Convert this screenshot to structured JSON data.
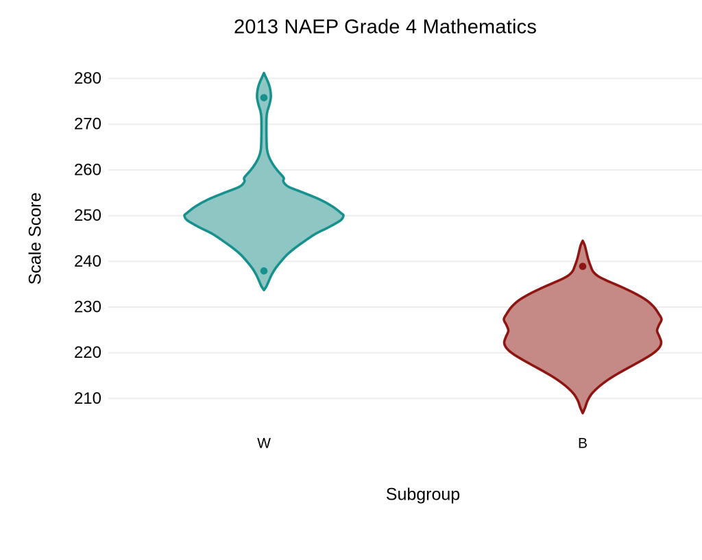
{
  "figure": {
    "background": "#ffffff",
    "text_color": "#000000",
    "gridline_color": "#ececec"
  },
  "chart_data": {
    "type": "violin",
    "title": "2013 NAEP Grade 4 Mathematics",
    "xlabel": "Subgroup",
    "ylabel": "Scale Score",
    "categories": [
      "W",
      "B"
    ],
    "yticks": [
      210,
      220,
      230,
      240,
      250,
      260,
      270,
      280
    ],
    "ylim": [
      205,
      283
    ],
    "grid": true,
    "legend": false,
    "series": [
      {
        "name": "W",
        "stroke": "#17918d",
        "fill": "#8dc6c3",
        "points": [
          275.8,
          237.9
        ],
        "range": [
          233.7,
          281.2
        ],
        "peak_score": 250,
        "profile": [
          [
            281.2,
            0
          ],
          [
            280.2,
            3
          ],
          [
            278.8,
            7
          ],
          [
            277.3,
            9.5
          ],
          [
            275.8,
            10
          ],
          [
            274.3,
            8
          ],
          [
            272.8,
            5
          ],
          [
            271.5,
            3.8
          ],
          [
            269.0,
            3.6
          ],
          [
            266.5,
            3.8
          ],
          [
            264.5,
            4.5
          ],
          [
            263.0,
            7
          ],
          [
            261.5,
            12
          ],
          [
            260.0,
            19
          ],
          [
            259.0,
            25
          ],
          [
            258.2,
            29
          ],
          [
            257.4,
            28.5
          ],
          [
            256.3,
            36
          ],
          [
            255.0,
            58
          ],
          [
            253.5,
            82
          ],
          [
            252.0,
            100
          ],
          [
            250.5,
            113
          ],
          [
            250.0,
            116
          ],
          [
            249.0,
            112
          ],
          [
            247.5,
            95
          ],
          [
            246.0,
            75
          ],
          [
            244.5,
            60
          ],
          [
            243.0,
            46
          ],
          [
            241.5,
            34
          ],
          [
            240.0,
            25
          ],
          [
            238.5,
            17
          ],
          [
            237.0,
            11
          ],
          [
            235.5,
            6.5
          ],
          [
            234.5,
            3.5
          ],
          [
            233.7,
            0
          ]
        ]
      },
      {
        "name": "B",
        "stroke": "#8e1511",
        "fill": "#c68a86",
        "points": [
          238.9
        ],
        "range": [
          206.8,
          244.5
        ],
        "peak_score": 224.5,
        "profile": [
          [
            244.5,
            0
          ],
          [
            243.5,
            3
          ],
          [
            242.0,
            5.5
          ],
          [
            240.5,
            8
          ],
          [
            239.0,
            11.5
          ],
          [
            237.8,
            15
          ],
          [
            236.8,
            22
          ],
          [
            235.8,
            35
          ],
          [
            234.5,
            55
          ],
          [
            233.0,
            76
          ],
          [
            231.5,
            93
          ],
          [
            230.0,
            104
          ],
          [
            228.5,
            111
          ],
          [
            227.3,
            115
          ],
          [
            226.0,
            111
          ],
          [
            224.8,
            108.5
          ],
          [
            223.5,
            112
          ],
          [
            222.2,
            114.5
          ],
          [
            221.0,
            111
          ],
          [
            219.8,
            102
          ],
          [
            218.5,
            88
          ],
          [
            217.0,
            70
          ],
          [
            215.5,
            52
          ],
          [
            214.0,
            36
          ],
          [
            212.5,
            23
          ],
          [
            211.0,
            13
          ],
          [
            209.5,
            7
          ],
          [
            208.0,
            3.5
          ],
          [
            206.8,
            0
          ]
        ]
      }
    ]
  }
}
